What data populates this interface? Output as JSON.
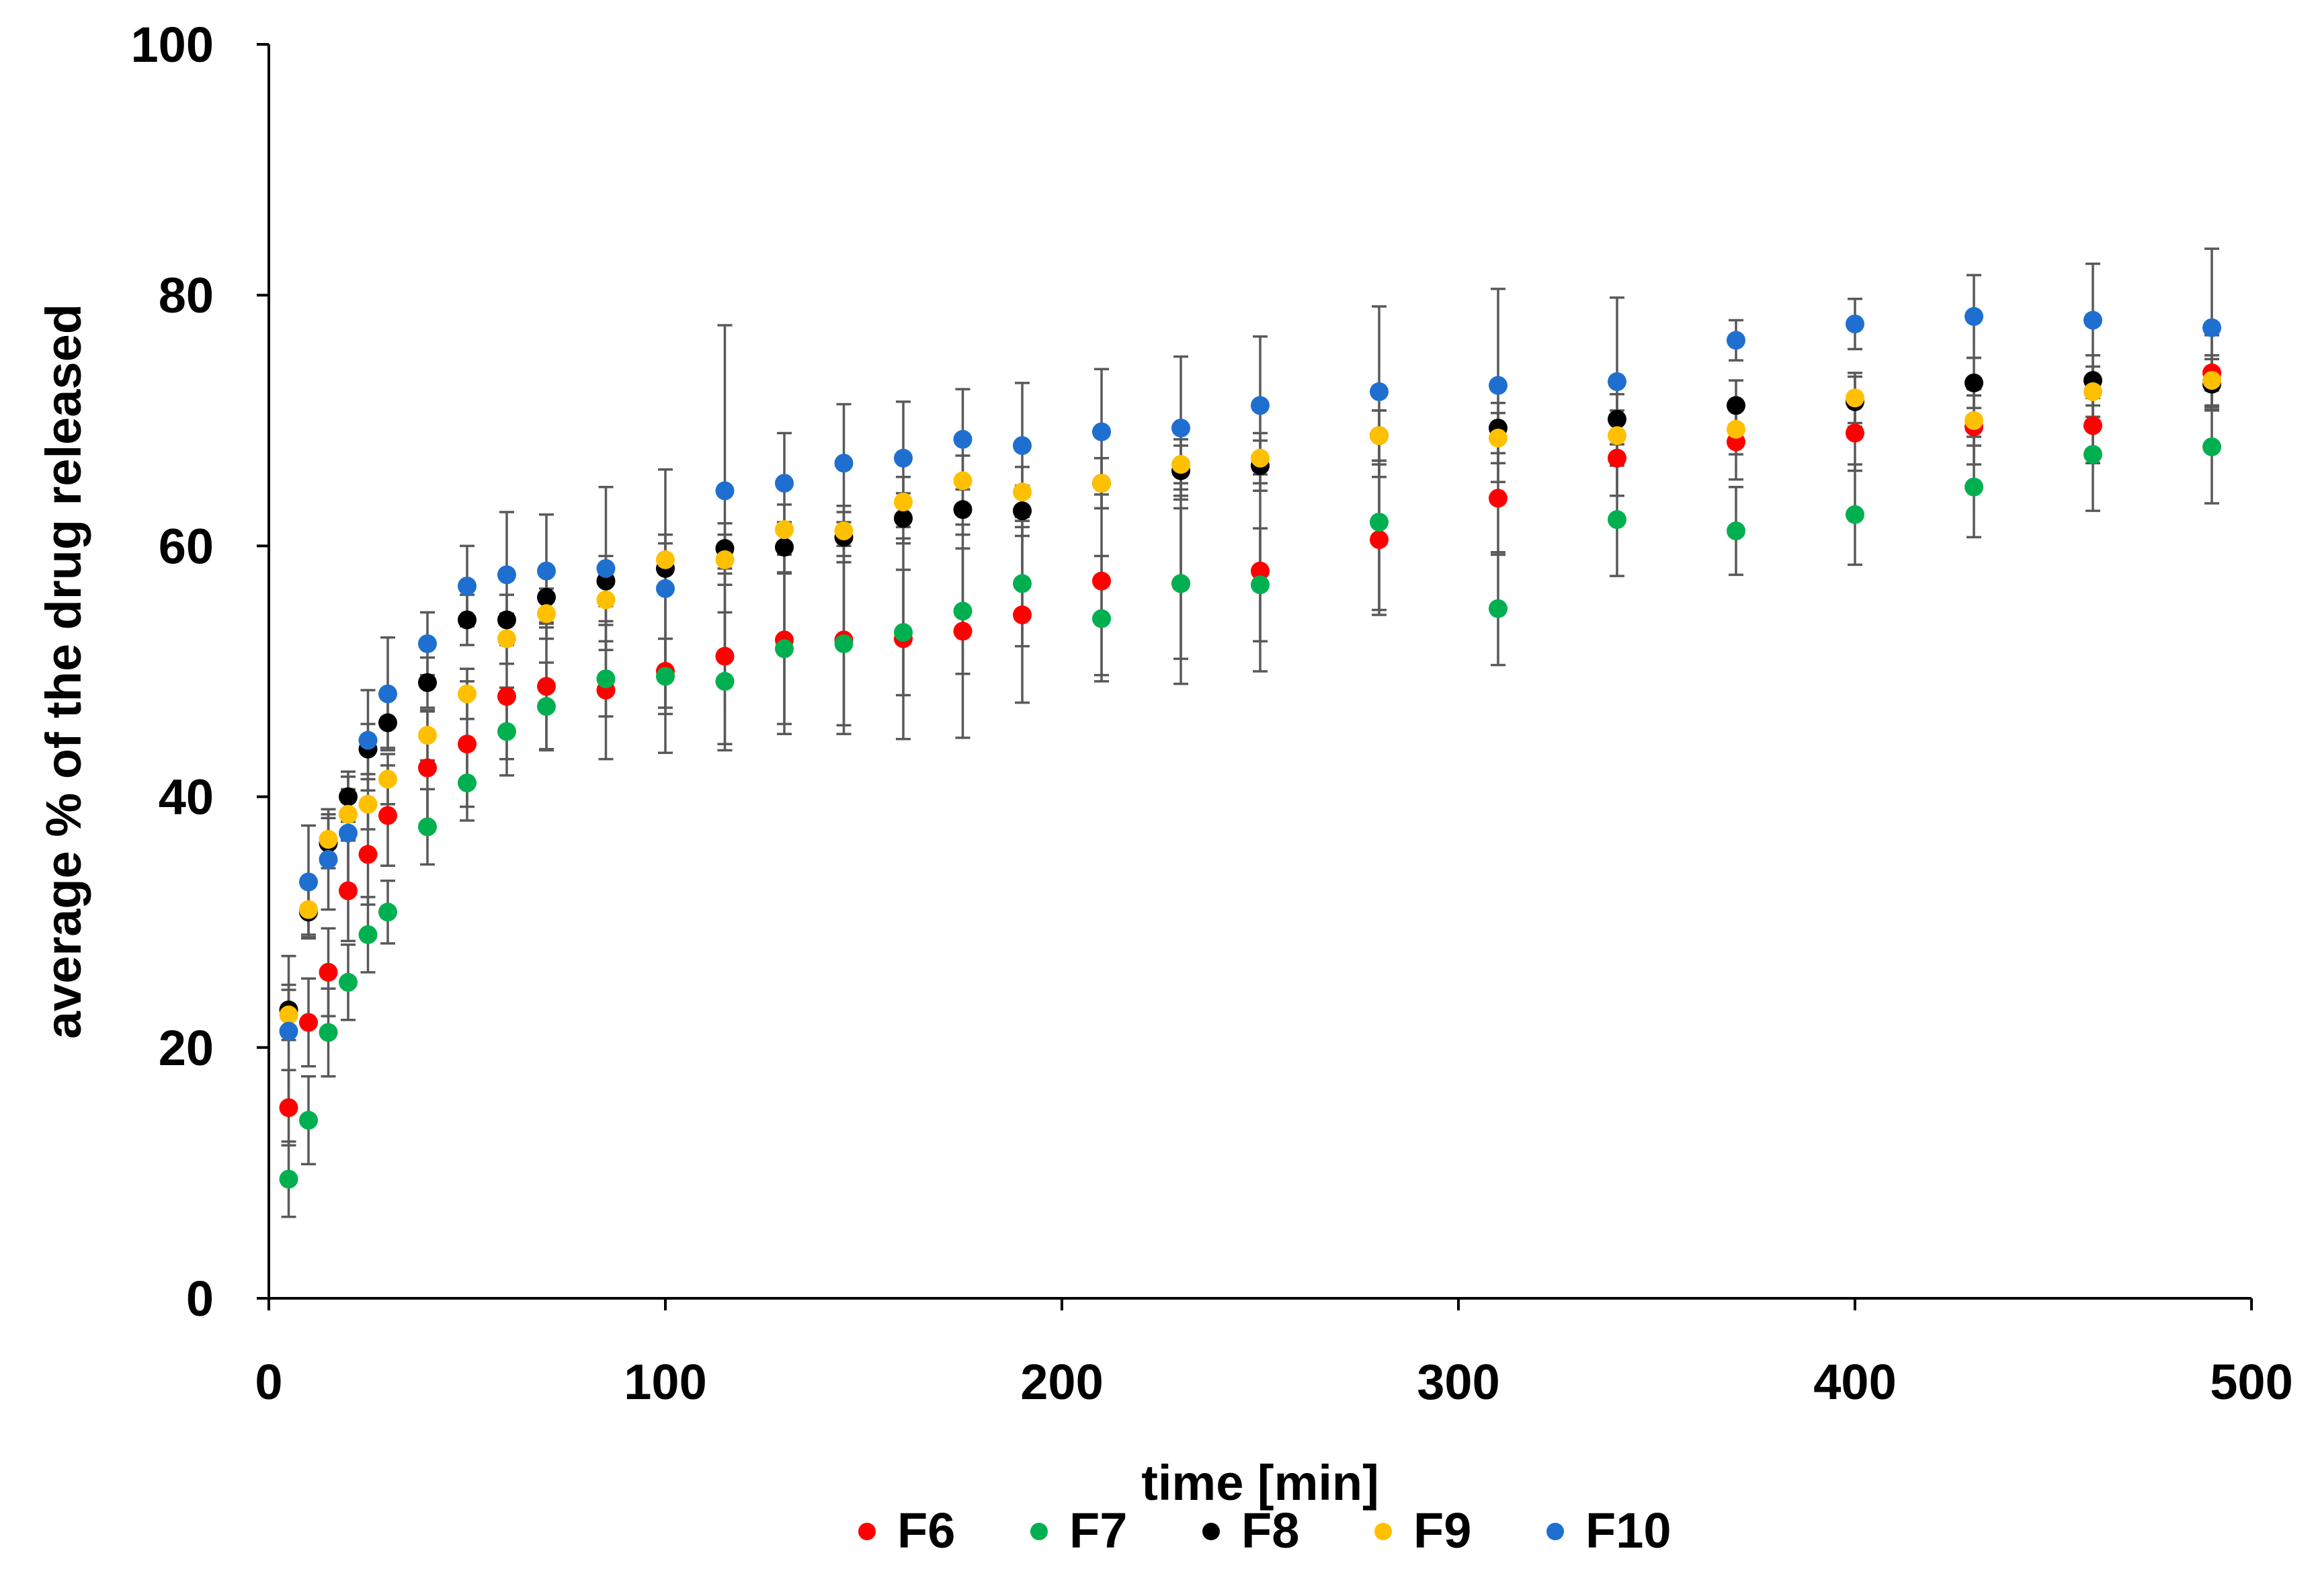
{
  "chart_data": {
    "type": "scatter",
    "title": "",
    "xlabel": "time [min]",
    "ylabel": "average % of  the drug released",
    "xlim": [
      0,
      500
    ],
    "ylim": [
      0,
      100
    ],
    "xticks": [
      "0",
      "100",
      "200",
      "300",
      "400",
      "500"
    ],
    "yticks": [
      "0",
      "20",
      "40",
      "60",
      "80",
      "100"
    ],
    "grid": false,
    "legend_position": "bottom-center",
    "x": [
      5,
      10,
      15,
      20,
      25,
      30,
      40,
      50,
      60,
      70,
      85,
      100,
      115,
      130,
      145,
      160,
      175,
      190,
      210,
      230,
      250,
      280,
      310,
      340,
      370,
      400,
      430,
      460,
      490
    ],
    "series": [
      {
        "name": "F6",
        "color": "#ff0000",
        "values": [
          15.2,
          22.0,
          26.0,
          32.5,
          35.4,
          38.5,
          42.3,
          44.2,
          48.0,
          48.8,
          48.5,
          50.0,
          51.2,
          52.5,
          52.5,
          52.6,
          53.2,
          54.5,
          57.2,
          57.0,
          58.0,
          60.5,
          63.8,
          67.0,
          68.3,
          69.0,
          69.5,
          69.6,
          73.8
        ],
        "errors": [
          3.0,
          3.5,
          3.5,
          4.0,
          4.0,
          4.0,
          4.5,
          5.0,
          5.0,
          5.0,
          5.5,
          6.5,
          7.0,
          7.5,
          7.5,
          8.0,
          8.5,
          7.0,
          7.5,
          8.0,
          8.0,
          6.0,
          4.5,
          3.0,
          3.0,
          3.0,
          3.0,
          3.0,
          3.0
        ]
      },
      {
        "name": "F7",
        "color": "#00b050",
        "values": [
          9.5,
          14.2,
          21.2,
          25.2,
          29.0,
          30.8,
          37.6,
          41.1,
          45.2,
          47.2,
          49.4,
          49.6,
          49.2,
          51.8,
          52.2,
          53.1,
          54.8,
          57.0,
          54.2,
          57.0,
          56.9,
          61.9,
          55.0,
          62.1,
          61.2,
          62.5,
          64.7,
          67.3,
          67.9
        ],
        "errors": [
          3.0,
          3.5,
          3.5,
          3.0,
          3.0,
          2.5,
          3.0,
          3.0,
          3.5,
          3.5,
          3.0,
          3.0,
          5.5,
          6.0,
          6.5,
          5.0,
          5.0,
          5.0,
          5.0,
          6.0,
          4.5,
          7.0,
          4.5,
          4.5,
          3.5,
          4.0,
          4.0,
          4.5,
          4.5
        ]
      },
      {
        "name": "F8",
        "color": "#000000",
        "values": [
          23.0,
          30.8,
          36.3,
          40.0,
          43.8,
          45.9,
          49.1,
          54.1,
          54.1,
          55.9,
          57.2,
          58.2,
          59.8,
          59.9,
          60.7,
          62.2,
          62.9,
          62.8,
          65.0,
          66.0,
          66.4,
          68.8,
          69.4,
          70.1,
          71.2,
          71.5,
          73.0,
          73.2,
          72.9
        ],
        "errors": [
          2.0,
          2.0,
          2.0,
          2.0,
          2.0,
          2.0,
          2.0,
          2.0,
          2.0,
          2.0,
          2.0,
          2.0,
          2.0,
          2.0,
          2.0,
          2.0,
          2.0,
          2.0,
          2.0,
          2.0,
          2.0,
          2.0,
          2.0,
          2.0,
          2.0,
          2.0,
          2.0,
          2.0,
          2.0
        ]
      },
      {
        "name": "F9",
        "color": "#ffc000",
        "values": [
          22.6,
          31.0,
          36.6,
          38.6,
          39.4,
          41.4,
          44.9,
          48.2,
          52.6,
          54.6,
          55.7,
          58.9,
          58.9,
          61.3,
          61.2,
          63.5,
          65.2,
          64.3,
          65.0,
          66.5,
          67.0,
          68.8,
          68.6,
          68.8,
          69.3,
          71.8,
          70.0,
          72.3,
          73.2
        ],
        "errors": [
          2.0,
          2.0,
          2.0,
          2.0,
          2.0,
          2.0,
          2.0,
          2.0,
          2.0,
          2.0,
          2.0,
          2.0,
          2.0,
          2.0,
          2.0,
          2.0,
          2.0,
          2.0,
          2.0,
          2.0,
          2.0,
          2.0,
          2.0,
          2.0,
          2.0,
          2.0,
          2.0,
          2.0,
          2.0
        ]
      },
      {
        "name": "F10",
        "color": "#1f6fd0",
        "values": [
          21.3,
          33.2,
          35.0,
          37.1,
          44.5,
          48.2,
          52.2,
          56.8,
          57.7,
          58.0,
          58.2,
          56.6,
          64.4,
          65.0,
          66.6,
          67.0,
          68.5,
          68.0,
          69.1,
          69.4,
          71.2,
          72.3,
          72.8,
          73.1,
          76.4,
          77.7,
          78.3,
          78.0,
          77.4
        ],
        "errors": [
          6.0,
          4.5,
          4.0,
          4.5,
          4.0,
          4.5,
          2.5,
          3.2,
          5.0,
          4.5,
          6.5,
          9.5,
          13.2,
          4.0,
          4.7,
          4.5,
          4.0,
          5.0,
          5.0,
          5.7,
          5.5,
          6.8,
          7.7,
          6.7,
          1.6,
          2.0,
          3.3,
          4.5,
          6.3
        ]
      }
    ]
  }
}
